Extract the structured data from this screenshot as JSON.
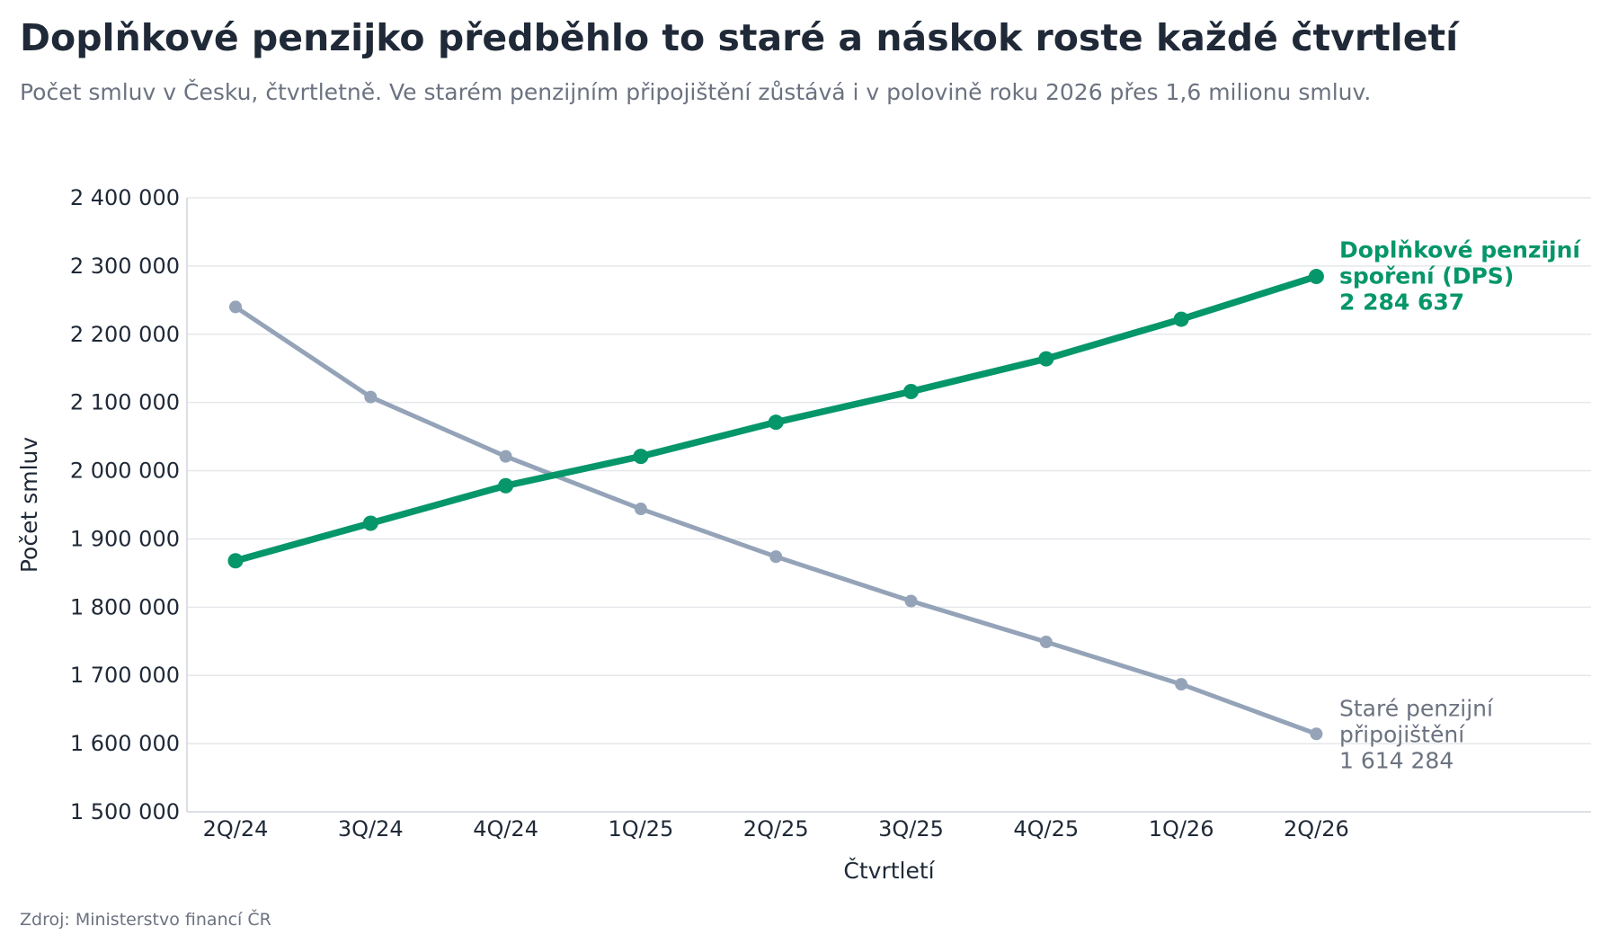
{
  "title": "Doplňkové penzijko předběhlo to staré a náskok roste každé čtvrtletí",
  "subtitle": "Počet smluv v Česku, čtvrtletně. Ve starém penzijním připojištění zůstává i v polovině roku 2026 přes 1,6 milionu smluv.",
  "source": "Zdroj: Ministerstvo financí ČR",
  "chart_data": {
    "type": "line",
    "xlabel": "Čtvrtletí",
    "ylabel": "Počet smluv",
    "ylim": [
      1500000,
      2400000
    ],
    "yticks": [
      1500000,
      1600000,
      1700000,
      1800000,
      1900000,
      2000000,
      2100000,
      2200000,
      2300000,
      2400000
    ],
    "ytick_labels": [
      "1 500 000",
      "1 600 000",
      "1 700 000",
      "1 800 000",
      "1 900 000",
      "2 000 000",
      "2 100 000",
      "2 200 000",
      "2 300 000",
      "2 400 000"
    ],
    "categories": [
      "2Q/24",
      "3Q/24",
      "4Q/24",
      "1Q/25",
      "2Q/25",
      "3Q/25",
      "4Q/25",
      "1Q/26",
      "2Q/26"
    ],
    "grid": true,
    "legend": "none",
    "series": [
      {
        "name": "Staré penzijní připojištění",
        "label_lines": [
          "Staré penzijní",
          "připojištění",
          "1 614 284"
        ],
        "color": "#94a3b8",
        "values": [
          2240000,
          2108000,
          2021000,
          1944000,
          1874000,
          1809000,
          1749000,
          1687000,
          1614284
        ]
      },
      {
        "name": "Doplňkové penzijní spoření (DPS)",
        "label_lines": [
          "Doplňkové penzijní",
          "spoření (DPS)",
          "2 284 637"
        ],
        "color": "#059669",
        "values": [
          1868000,
          1923000,
          1978000,
          2021000,
          2071000,
          2116000,
          2164000,
          2222000,
          2284637
        ]
      }
    ]
  }
}
